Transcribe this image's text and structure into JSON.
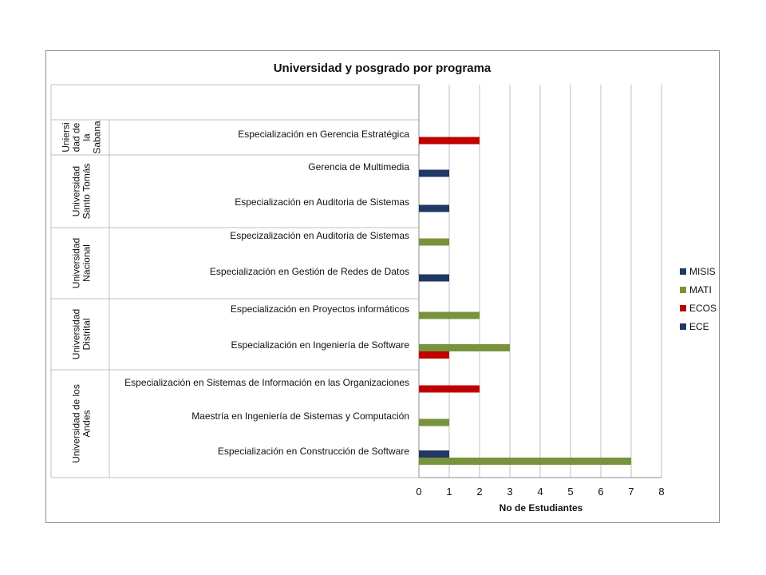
{
  "chart_data": {
    "type": "bar",
    "orientation": "horizontal",
    "title": "Universidad y posgrado por programa",
    "xlabel": "No de Estudiantes",
    "ylabel": "",
    "xlim": [
      0,
      8
    ],
    "xticks": [
      "0",
      "1",
      "2",
      "3",
      "4",
      "5",
      "6",
      "7",
      "8"
    ],
    "grid": true,
    "legend_position": "right",
    "groups": [
      {
        "label": "Unive rsi dad de la Sabana",
        "lines": [
          "Uniersi",
          "dad de",
          "la",
          "Sabana"
        ],
        "categories": [
          "Especialización en Gerencia Estratégica"
        ]
      },
      {
        "label": "Universidad Santo Tomás",
        "lines": [
          "Universidad",
          "Santo Tomás"
        ],
        "categories": [
          "Gerencia de Multimedia",
          "Especialización en  Auditoria de Sistemas"
        ]
      },
      {
        "label": "Universidad Nacional",
        "lines": [
          "Universidad",
          "Nacional"
        ],
        "categories": [
          "Especizalización en Auditoria de Sistemas",
          "Especialización en Gestión de Redes de Datos"
        ]
      },
      {
        "label": "Universidad Distrital",
        "lines": [
          "Universidad",
          "Distrital"
        ],
        "categories": [
          "Especialización en Proyectos  informáticos",
          "Especialización en Ingeniería de Software"
        ]
      },
      {
        "label": "Universidad de los Andes",
        "lines": [
          "Universidad de los",
          "Andes"
        ],
        "categories": [
          "Especialización en Sistemas de Información en las Organizaciones",
          "Maestría en Ingeniería de Sistemas y Computación",
          "Especialización en Construcción de Software"
        ]
      }
    ],
    "series": [
      {
        "name": "MISIS",
        "color": "#1f3864",
        "values": [
          0,
          1,
          1,
          0,
          1,
          0,
          0,
          0,
          0,
          1
        ]
      },
      {
        "name": "MATI",
        "color": "#77933c",
        "values": [
          0,
          0,
          0,
          1,
          0,
          2,
          3,
          0,
          1,
          7
        ]
      },
      {
        "name": "ECOS",
        "color": "#c00000",
        "values": [
          2,
          0,
          0,
          0,
          0,
          0,
          1,
          2,
          0,
          0
        ]
      },
      {
        "name": "ECE",
        "color": "#1f3864",
        "values": [
          0,
          0,
          0,
          0,
          0,
          0,
          0,
          0,
          0,
          0
        ]
      }
    ]
  }
}
